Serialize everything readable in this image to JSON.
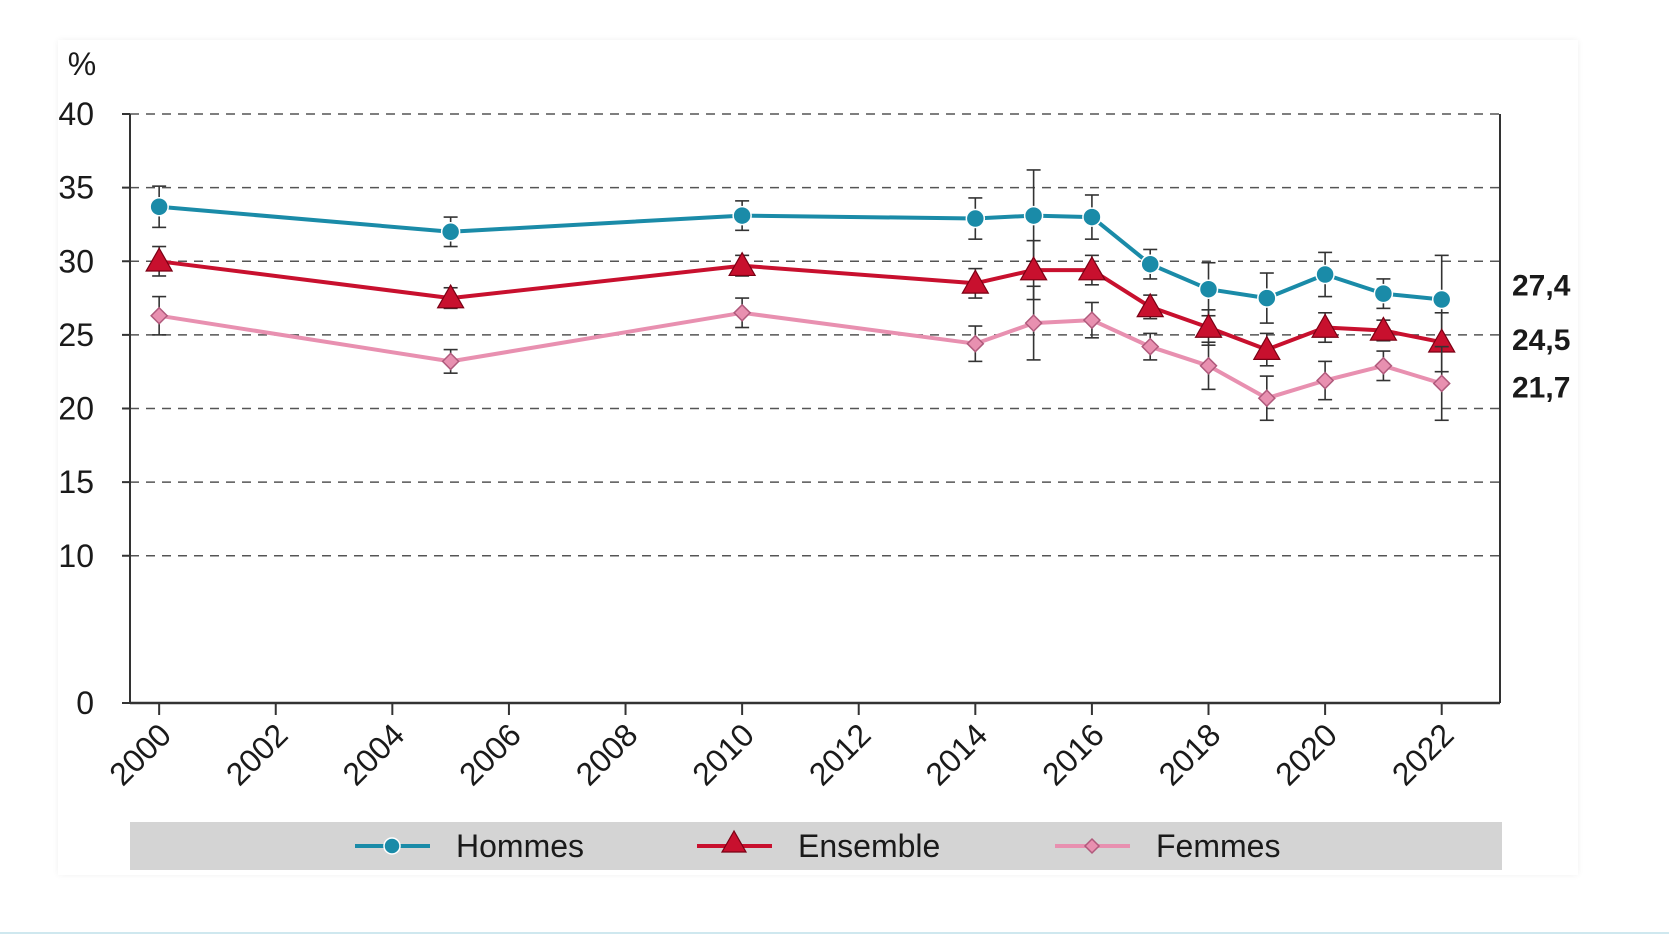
{
  "chart_data": {
    "type": "line",
    "y_unit_label": "%",
    "ylim": [
      0,
      40
    ],
    "yticks": [
      0,
      10,
      15,
      20,
      25,
      30,
      35,
      40
    ],
    "xlim": [
      1999.5,
      2023
    ],
    "xticks": [
      "2000",
      "2002",
      "2004",
      "2006",
      "2008",
      "2010",
      "2012",
      "2014",
      "2016",
      "2018",
      "2020",
      "2022"
    ],
    "grid": "horizontal dashed",
    "legend_position": "bottom",
    "series": [
      {
        "name": "Hommes",
        "color": "#1a8ba8",
        "marker": "circle",
        "end_label": "27,4",
        "points": [
          {
            "x": 2000,
            "y": 33.7,
            "lo": 32.3,
            "hi": 35.1
          },
          {
            "x": 2005,
            "y": 32.0,
            "lo": 31.0,
            "hi": 33.0
          },
          {
            "x": 2010,
            "y": 33.1,
            "lo": 32.1,
            "hi": 34.1
          },
          {
            "x": 2014,
            "y": 32.9,
            "lo": 31.5,
            "hi": 34.3
          },
          {
            "x": 2015,
            "y": 33.1,
            "lo": 30.0,
            "hi": 36.2
          },
          {
            "x": 2016,
            "y": 33.0,
            "lo": 31.5,
            "hi": 34.5
          },
          {
            "x": 2017,
            "y": 29.8,
            "lo": 28.8,
            "hi": 30.8
          },
          {
            "x": 2018,
            "y": 28.1,
            "lo": 26.3,
            "hi": 29.9
          },
          {
            "x": 2019,
            "y": 27.5,
            "lo": 25.8,
            "hi": 29.2
          },
          {
            "x": 2020,
            "y": 29.1,
            "lo": 27.6,
            "hi": 30.6
          },
          {
            "x": 2021,
            "y": 27.8,
            "lo": 26.8,
            "hi": 28.8
          },
          {
            "x": 2022,
            "y": 27.4,
            "lo": 24.4,
            "hi": 30.4
          }
        ]
      },
      {
        "name": "Ensemble",
        "color": "#c8102e",
        "marker": "triangle",
        "end_label": "24,5",
        "points": [
          {
            "x": 2000,
            "y": 30.0,
            "lo": 29.0,
            "hi": 31.0
          },
          {
            "x": 2005,
            "y": 27.5,
            "lo": 26.8,
            "hi": 28.2
          },
          {
            "x": 2010,
            "y": 29.7,
            "lo": 29.0,
            "hi": 30.4
          },
          {
            "x": 2014,
            "y": 28.5,
            "lo": 27.5,
            "hi": 29.5
          },
          {
            "x": 2015,
            "y": 29.4,
            "lo": 27.4,
            "hi": 31.4
          },
          {
            "x": 2016,
            "y": 29.4,
            "lo": 28.4,
            "hi": 30.4
          },
          {
            "x": 2017,
            "y": 26.9,
            "lo": 26.1,
            "hi": 27.7
          },
          {
            "x": 2018,
            "y": 25.5,
            "lo": 24.3,
            "hi": 26.7
          },
          {
            "x": 2019,
            "y": 24.0,
            "lo": 22.9,
            "hi": 25.1
          },
          {
            "x": 2020,
            "y": 25.5,
            "lo": 24.5,
            "hi": 26.5
          },
          {
            "x": 2021,
            "y": 25.3,
            "lo": 24.6,
            "hi": 26.0
          },
          {
            "x": 2022,
            "y": 24.5,
            "lo": 22.5,
            "hi": 26.5
          }
        ]
      },
      {
        "name": "Femmes",
        "color": "#e890b0",
        "marker": "diamond",
        "end_label": "21,7",
        "points": [
          {
            "x": 2000,
            "y": 26.3,
            "lo": 25.0,
            "hi": 27.6
          },
          {
            "x": 2005,
            "y": 23.2,
            "lo": 22.4,
            "hi": 24.0
          },
          {
            "x": 2010,
            "y": 26.5,
            "lo": 25.5,
            "hi": 27.5
          },
          {
            "x": 2014,
            "y": 24.4,
            "lo": 23.2,
            "hi": 25.6
          },
          {
            "x": 2015,
            "y": 25.8,
            "lo": 23.3,
            "hi": 28.3
          },
          {
            "x": 2016,
            "y": 26.0,
            "lo": 24.8,
            "hi": 27.2
          },
          {
            "x": 2017,
            "y": 24.2,
            "lo": 23.3,
            "hi": 25.1
          },
          {
            "x": 2018,
            "y": 22.9,
            "lo": 21.3,
            "hi": 24.5
          },
          {
            "x": 2019,
            "y": 20.7,
            "lo": 19.2,
            "hi": 22.2
          },
          {
            "x": 2020,
            "y": 21.9,
            "lo": 20.6,
            "hi": 23.2
          },
          {
            "x": 2021,
            "y": 22.9,
            "lo": 21.9,
            "hi": 23.9
          },
          {
            "x": 2022,
            "y": 21.7,
            "lo": 19.2,
            "hi": 24.2
          }
        ]
      }
    ]
  }
}
